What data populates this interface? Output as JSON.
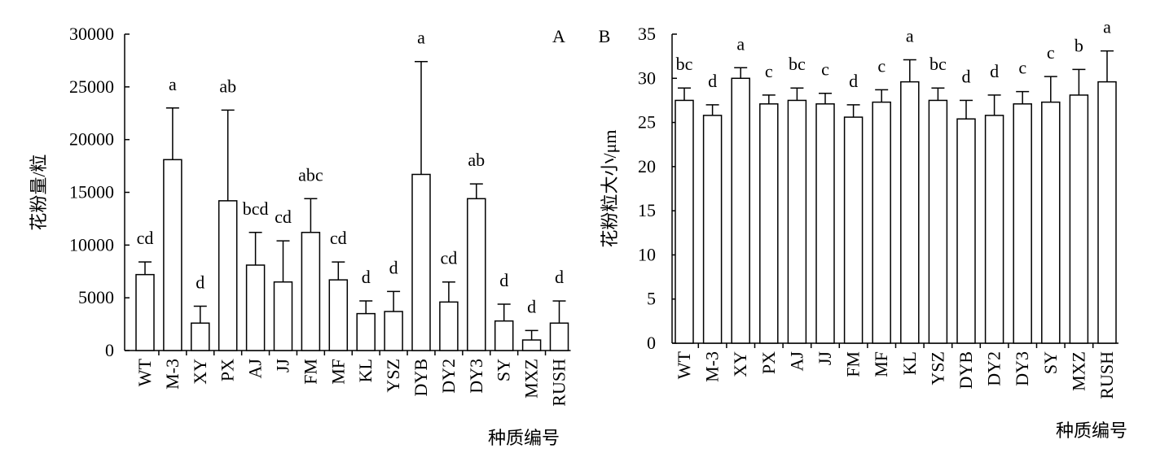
{
  "chart_data": [
    {
      "type": "bar",
      "panel_label": "A",
      "ylabel": "花粉量/粒",
      "xlabel": "种质编号",
      "ylim": [
        0,
        30000
      ],
      "yticks": [
        "0",
        "5000",
        "10000",
        "15000",
        "20000",
        "25000",
        "30000"
      ],
      "categories": [
        "WT",
        "M-3",
        "XY",
        "PX",
        "AJ",
        "JJ",
        "FM",
        "MF",
        "KL",
        "YSZ",
        "DYB",
        "DY2",
        "DY3",
        "SY",
        "MXZ",
        "RUSH"
      ],
      "values": [
        7200,
        18100,
        2600,
        14200,
        8100,
        6500,
        11200,
        6700,
        3500,
        3700,
        16700,
        4600,
        14400,
        2800,
        1000,
        2600
      ],
      "errors": [
        1200,
        4900,
        1600,
        8600,
        3100,
        3900,
        3200,
        1700,
        1200,
        1900,
        10700,
        1900,
        1400,
        1600,
        900,
        2100
      ],
      "significance": [
        "cd",
        "a",
        "d",
        "ab",
        "bcd",
        "cd",
        "abc",
        "cd",
        "d",
        "d",
        "a",
        "cd",
        "ab",
        "d",
        "d",
        "d"
      ],
      "grid": false,
      "legend": "none"
    },
    {
      "type": "bar",
      "panel_label": "B",
      "ylabel": "花粉粒大小/μm",
      "xlabel": "种质编号",
      "ylim": [
        0,
        35
      ],
      "yticks": [
        "0",
        "5",
        "10",
        "15",
        "20",
        "25",
        "30",
        "35"
      ],
      "categories": [
        "WT",
        "M-3",
        "XY",
        "PX",
        "AJ",
        "JJ",
        "FM",
        "MF",
        "KL",
        "YSZ",
        "DYB",
        "DY2",
        "DY3",
        "SY",
        "MXZ",
        "RUSH"
      ],
      "values": [
        27.5,
        25.8,
        30.0,
        27.1,
        27.5,
        27.1,
        25.6,
        27.3,
        29.6,
        27.5,
        25.4,
        25.8,
        27.1,
        27.3,
        28.1,
        29.6
      ],
      "errors": [
        1.4,
        1.2,
        1.2,
        1.0,
        1.4,
        1.2,
        1.4,
        1.4,
        2.5,
        1.4,
        2.1,
        2.3,
        1.4,
        2.9,
        2.9,
        3.5
      ],
      "significance": [
        "bc",
        "d",
        "a",
        "c",
        "bc",
        "c",
        "d",
        "c",
        "a",
        "bc",
        "d",
        "d",
        "c",
        "c",
        "b",
        "a"
      ],
      "grid": false,
      "legend": "none"
    }
  ]
}
